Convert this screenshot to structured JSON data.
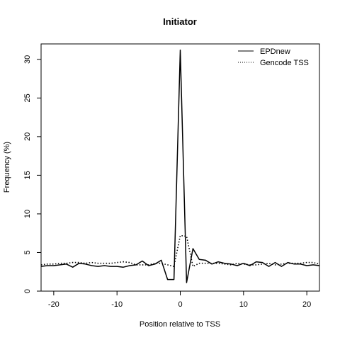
{
  "chart_data": {
    "type": "line",
    "title": "Initiator",
    "xlabel": "Position relative to TSS",
    "ylabel": "Frequency (%)",
    "xlim": [
      -22,
      22
    ],
    "ylim": [
      0,
      32
    ],
    "xticks": [
      -20,
      -10,
      0,
      10,
      20
    ],
    "yticks": [
      0,
      5,
      10,
      15,
      20,
      25,
      30
    ],
    "grid": false,
    "legend_position": "top-right",
    "series": [
      {
        "name": "EPDnew",
        "style": "solid",
        "color": "#000000",
        "x": [
          -22,
          -21,
          -20,
          -19,
          -18,
          -17,
          -16,
          -15,
          -14,
          -13,
          -12,
          -11,
          -10,
          -9,
          -8,
          -7,
          -6,
          -5,
          -4,
          -3,
          -2,
          -1,
          0,
          1,
          2,
          3,
          4,
          5,
          6,
          7,
          8,
          9,
          10,
          11,
          12,
          13,
          14,
          15,
          16,
          17,
          18,
          19,
          20,
          21,
          22
        ],
        "y": [
          3.2,
          3.3,
          3.3,
          3.4,
          3.5,
          3.1,
          3.6,
          3.5,
          3.3,
          3.2,
          3.3,
          3.2,
          3.2,
          3.1,
          3.3,
          3.4,
          3.9,
          3.3,
          3.5,
          4.0,
          1.5,
          1.5,
          31.2,
          1.1,
          5.5,
          4.1,
          4.0,
          3.5,
          3.8,
          3.6,
          3.5,
          3.3,
          3.6,
          3.3,
          3.8,
          3.7,
          3.2,
          3.7,
          3.2,
          3.7,
          3.5,
          3.5,
          3.3,
          3.4,
          3.3
        ]
      },
      {
        "name": "Gencode TSS",
        "style": "dotted",
        "color": "#000000",
        "x": [
          -22,
          -21,
          -20,
          -19,
          -18,
          -17,
          -16,
          -15,
          -14,
          -13,
          -12,
          -11,
          -10,
          -9,
          -8,
          -7,
          -6,
          -5,
          -4,
          -3,
          -2,
          -1,
          0,
          1,
          2,
          3,
          4,
          5,
          6,
          7,
          8,
          9,
          10,
          11,
          12,
          13,
          14,
          15,
          16,
          17,
          18,
          19,
          20,
          21,
          22
        ],
        "y": [
          3.4,
          3.5,
          3.5,
          3.6,
          3.6,
          3.7,
          3.7,
          3.6,
          3.7,
          3.6,
          3.6,
          3.6,
          3.7,
          3.8,
          3.7,
          3.4,
          3.4,
          3.4,
          3.6,
          3.6,
          3.4,
          3.2,
          7.2,
          7.1,
          3.2,
          3.6,
          3.6,
          3.6,
          3.6,
          3.5,
          3.4,
          3.6,
          3.5,
          3.4,
          3.4,
          3.5,
          3.6,
          3.4,
          3.5,
          3.6,
          3.6,
          3.6,
          3.7,
          3.7,
          3.5
        ]
      }
    ]
  }
}
